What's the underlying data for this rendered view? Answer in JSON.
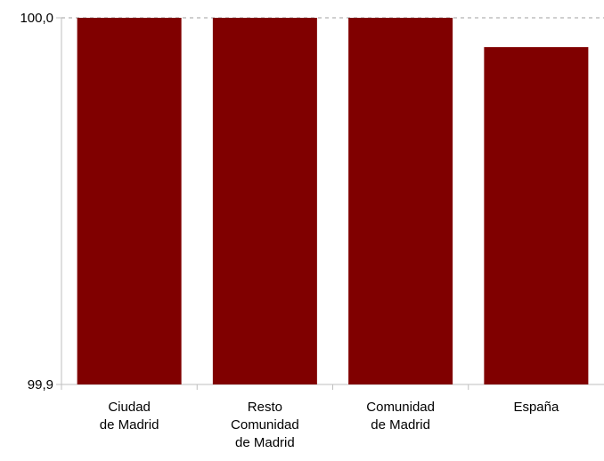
{
  "colors": {
    "bar": "#800000",
    "axis": "#bfbfbf",
    "grid": "#bfbfbf"
  },
  "chart_data": {
    "type": "bar",
    "title": "",
    "xlabel": "",
    "ylabel": "",
    "categories": [
      [
        "Ciudad",
        "de Madrid"
      ],
      [
        "Resto",
        "Comunidad",
        "de Madrid"
      ],
      [
        "Comunidad",
        "de Madrid"
      ],
      [
        "España"
      ]
    ],
    "values": [
      100.0,
      100.0,
      100.0,
      99.992
    ],
    "ylim": [
      99.9,
      100.0
    ],
    "yticks": [
      {
        "value": 100.0,
        "label": "100,0"
      },
      {
        "value": 99.9,
        "label": "99,9"
      }
    ],
    "grid": "dashed line at top tick only",
    "legend": "none"
  }
}
